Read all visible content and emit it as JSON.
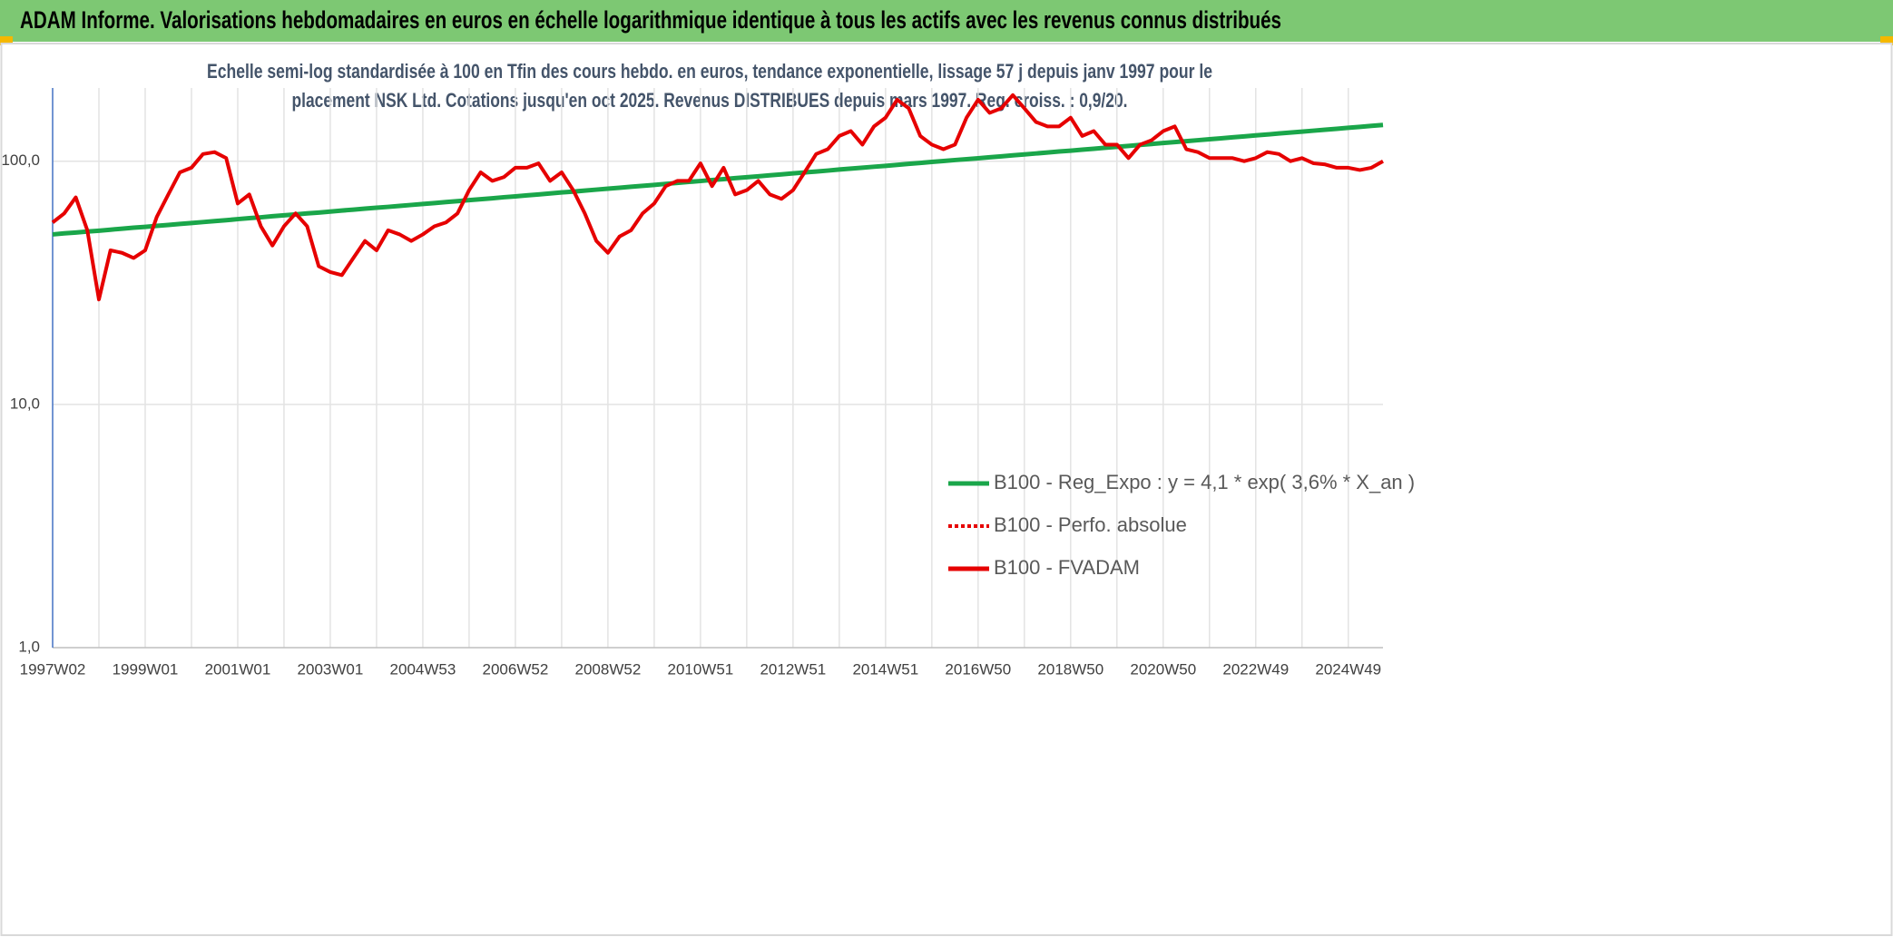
{
  "chart_data": {
    "type": "line",
    "title": "ADAM Informe. Valorisations hebdomadaires en euros en échelle logarithmique identique à tous les actifs avec les revenus connus distribués",
    "subtitle": [
      "Echelle semi-log standardisée à 100 en Tfin des cours hebdo. en euros, tendance exponentielle, lissage 57 j depuis janv 1997 pour le",
      "placement NSK Ltd. Cotations jusqu'en oct 2025. Revenus DISTRIBUES depuis mars 1997. Reg. croiss. : 0,9/20."
    ],
    "log_scale": true,
    "grid": true,
    "legend": "lower right",
    "ylim": [
      1,
      200
    ],
    "yticks": [
      {
        "value": 1,
        "label": "1,0"
      },
      {
        "value": 10,
        "label": "10,0"
      },
      {
        "value": 100,
        "label": "100,0"
      }
    ],
    "categories": [
      "1997W02",
      null,
      null,
      null,
      null,
      null,
      null,
      null,
      "1999W01",
      null,
      null,
      null,
      null,
      null,
      null,
      null,
      "2001W01",
      null,
      null,
      null,
      null,
      null,
      null,
      null,
      "2003W01",
      null,
      null,
      null,
      null,
      null,
      null,
      null,
      "2004W53",
      null,
      null,
      null,
      null,
      null,
      null,
      null,
      "2006W52",
      null,
      null,
      null,
      null,
      null,
      null,
      null,
      "2008W52",
      null,
      null,
      null,
      null,
      null,
      null,
      null,
      "2010W51",
      null,
      null,
      null,
      null,
      null,
      null,
      null,
      "2012W51",
      null,
      null,
      null,
      null,
      null,
      null,
      null,
      "2014W51",
      null,
      null,
      null,
      null,
      null,
      null,
      null,
      "2016W50",
      null,
      null,
      null,
      null,
      null,
      null,
      null,
      "2018W50",
      null,
      null,
      null,
      null,
      null,
      null,
      null,
      "2020W50",
      null,
      null,
      null,
      null,
      null,
      null,
      null,
      "2022W49",
      null,
      null,
      null,
      null,
      null,
      null,
      null,
      "2024W49",
      null,
      null,
      null
    ],
    "series": [
      {
        "name": "B100 - Reg_Expo : y = 4,1 * exp( 3,6% *  X_an )",
        "color": "#1aa64a",
        "dash": "solid",
        "values": [
          50.0,
          50.5,
          50.9,
          51.4,
          51.8,
          52.3,
          52.8,
          53.3,
          53.7,
          54.2,
          54.7,
          55.2,
          55.7,
          56.2,
          56.7,
          57.2,
          57.8,
          58.3,
          58.8,
          59.4,
          59.9,
          60.4,
          61.0,
          61.5,
          62.1,
          62.7,
          63.2,
          63.8,
          64.4,
          64.9,
          65.5,
          66.1,
          66.7,
          67.3,
          67.9,
          68.5,
          69.2,
          69.8,
          70.4,
          71.1,
          71.7,
          72.4,
          73.0,
          73.7,
          74.4,
          75.0,
          75.7,
          76.4,
          77.1,
          77.8,
          78.5,
          79.2,
          79.9,
          80.7,
          81.4,
          82.2,
          82.9,
          83.7,
          84.4,
          85.2,
          85.9,
          86.7,
          87.5,
          88.3,
          89.1,
          89.9,
          90.7,
          91.5,
          92.4,
          93.2,
          94.0,
          94.9,
          95.7,
          96.6,
          97.5,
          98.4,
          99.3,
          100.2,
          101.1,
          101.9,
          102.8,
          103.8,
          104.7,
          105.7,
          106.6,
          107.6,
          108.6,
          109.6,
          110.5,
          111.5,
          112.5,
          113.6,
          114.6,
          115.6,
          116.7,
          117.7,
          118.8,
          119.9,
          120.9,
          122.0,
          123.1,
          124.2,
          125.4,
          126.5,
          127.7,
          128.8,
          130.0,
          131.2,
          132.3,
          133.5,
          134.7,
          135.9,
          137.2,
          138.4,
          139.7,
          141.0
        ]
      },
      {
        "name": "B100 - Perfo. absolue",
        "color": "#e60000",
        "dash": "dotted",
        "values": [
          56,
          61,
          71,
          52,
          27,
          43,
          42,
          40,
          43,
          59,
          73,
          90,
          94,
          107,
          109,
          103,
          67,
          73,
          54,
          45,
          54,
          61,
          54,
          37,
          35,
          34,
          40,
          47,
          43,
          52,
          50,
          47,
          50,
          54,
          56,
          61,
          76,
          90,
          83,
          86,
          94,
          94,
          98,
          83,
          90,
          76,
          61,
          47,
          42,
          49,
          52,
          61,
          67,
          79,
          83,
          83,
          98,
          79,
          94,
          73,
          76,
          83,
          73,
          70,
          76,
          90,
          107,
          112,
          127,
          133,
          117,
          139,
          151,
          179,
          165,
          127,
          117,
          112,
          117,
          151,
          179,
          158,
          165,
          187,
          165,
          145,
          139,
          139,
          151,
          127,
          133,
          117,
          117,
          103,
          117,
          122,
          133,
          139,
          112,
          109,
          103,
          103,
          103,
          100,
          103,
          109,
          107,
          100,
          103,
          98,
          97,
          94,
          94,
          92,
          94,
          100
        ]
      },
      {
        "name": "B100 - FVADAM",
        "color": "#e60000",
        "dash": "solid",
        "values": [
          56,
          61,
          71,
          52,
          27,
          43,
          42,
          40,
          43,
          59,
          73,
          90,
          94,
          107,
          109,
          103,
          67,
          73,
          54,
          45,
          54,
          61,
          54,
          37,
          35,
          34,
          40,
          47,
          43,
          52,
          50,
          47,
          50,
          54,
          56,
          61,
          76,
          90,
          83,
          86,
          94,
          94,
          98,
          83,
          90,
          76,
          61,
          47,
          42,
          49,
          52,
          61,
          67,
          79,
          83,
          83,
          98,
          79,
          94,
          73,
          76,
          83,
          73,
          70,
          76,
          90,
          107,
          112,
          127,
          133,
          117,
          139,
          151,
          179,
          165,
          127,
          117,
          112,
          117,
          151,
          179,
          158,
          165,
          187,
          165,
          145,
          139,
          139,
          151,
          127,
          133,
          117,
          117,
          103,
          117,
          122,
          133,
          139,
          112,
          109,
          103,
          103,
          103,
          100,
          103,
          109,
          107,
          100,
          103,
          98,
          97,
          94,
          94,
          92,
          94,
          100
        ]
      }
    ]
  }
}
